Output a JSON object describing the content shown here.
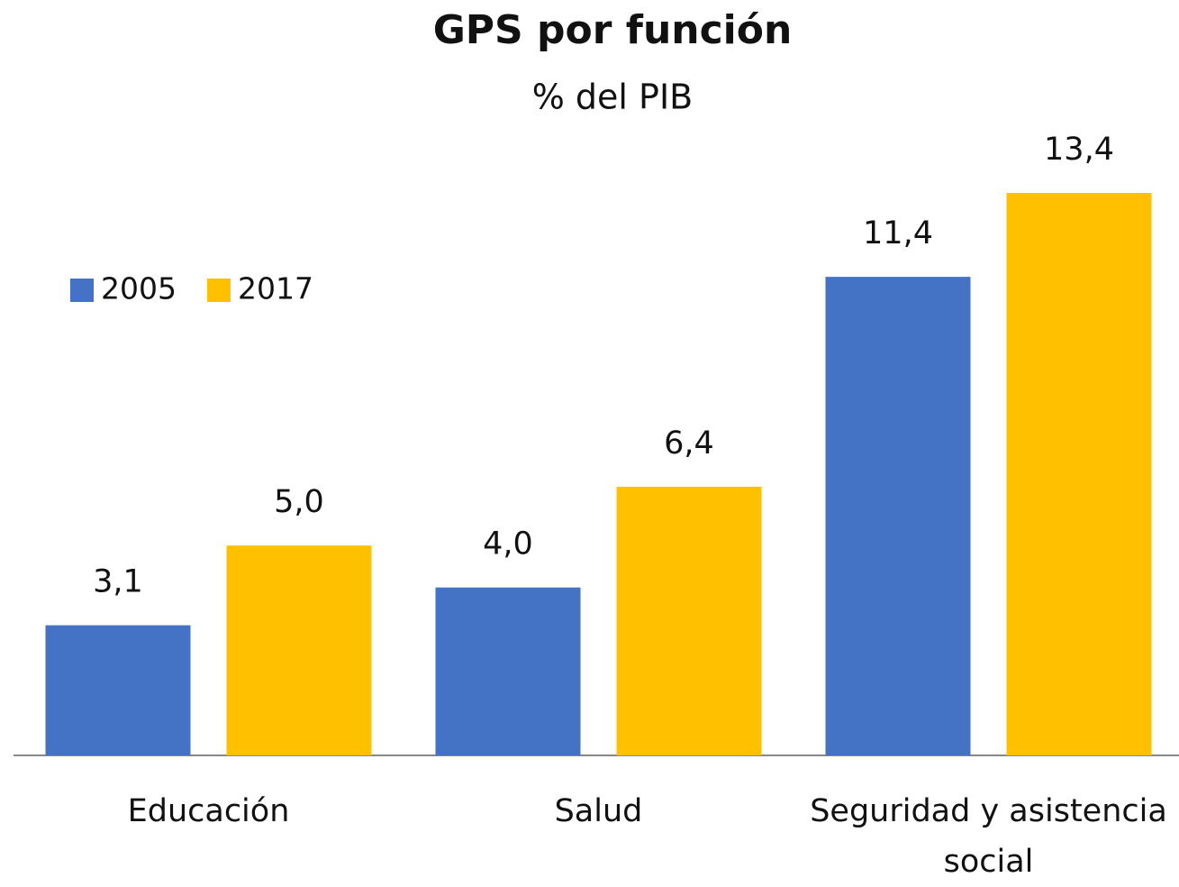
{
  "chart_data": {
    "type": "bar",
    "title": "GPS por función",
    "subtitle": "% del PIB",
    "categories": [
      "Educación",
      "Salud",
      "Seguridad y asistencia social"
    ],
    "series": [
      {
        "name": "2005",
        "color": "#4472c4",
        "values": [
          3.1,
          4.0,
          11.4
        ],
        "value_labels": [
          "3,1",
          "4,0",
          "11,4"
        ]
      },
      {
        "name": "2017",
        "color": "#ffc000",
        "values": [
          5.0,
          6.4,
          13.4
        ],
        "value_labels": [
          "5,0",
          "6,4",
          "13,4"
        ]
      }
    ],
    "legend": "upper left"
  }
}
